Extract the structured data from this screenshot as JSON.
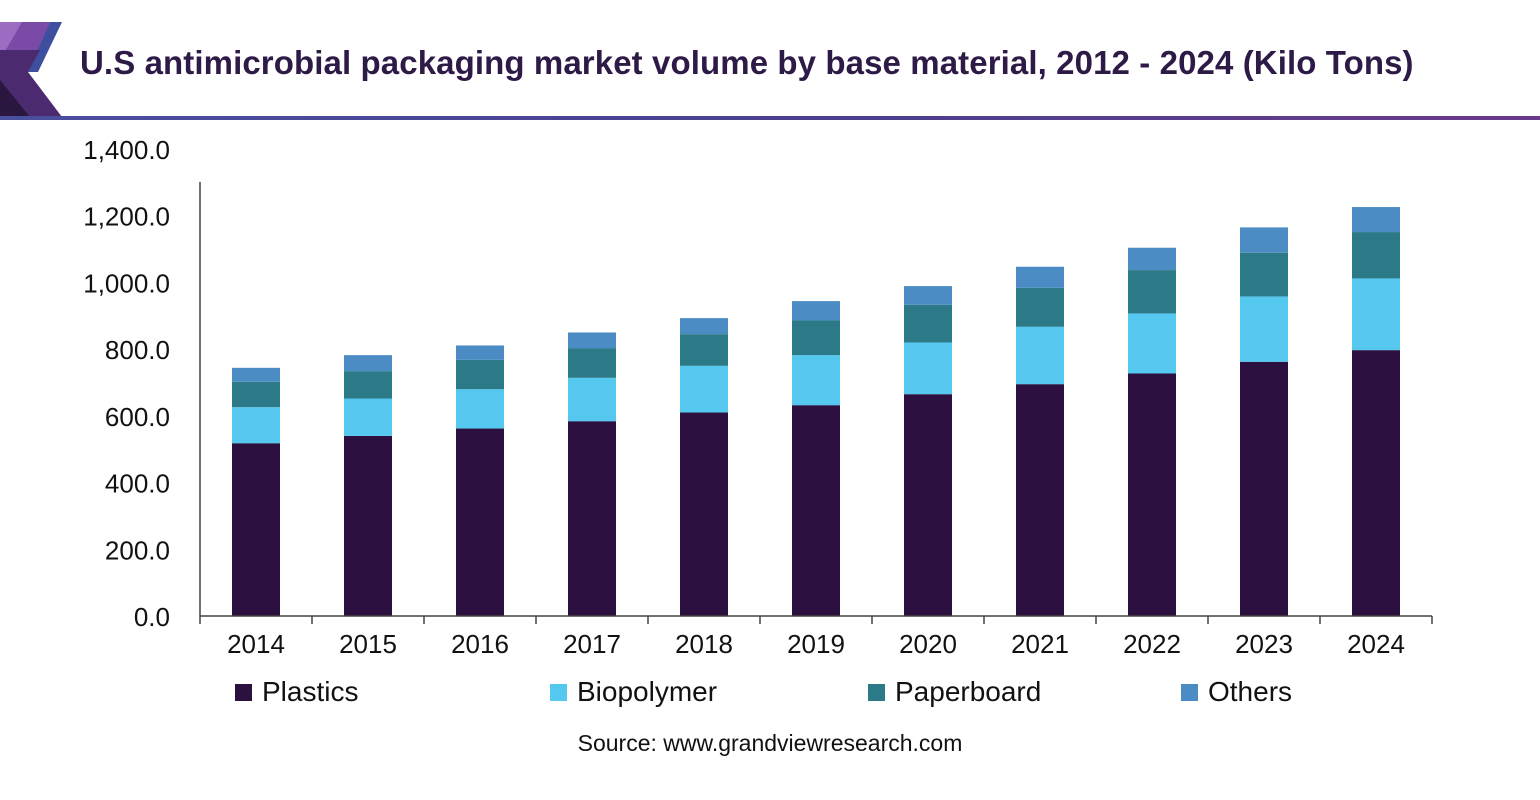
{
  "colors": {
    "plastics": "#2b1040",
    "biopolymer": "#55c8f0",
    "paperboard": "#2c7a87",
    "others": "#4c8cc4",
    "title": "#2e1a47",
    "axis": "#444444"
  },
  "chart_data": {
    "type": "bar",
    "stacked": true,
    "title": "U.S antimicrobial packaging market volume by base material, 2012 - 2024 (Kilo Tons)",
    "xlabel": "",
    "ylabel": "",
    "ylim": [
      0,
      1400
    ],
    "y_ticks": [
      "0.0",
      "200.0",
      "400.0",
      "600.0",
      "800.0",
      "1,000.0",
      "1,200.0",
      "1,400.0"
    ],
    "y_tick_values": [
      0,
      200,
      400,
      600,
      800,
      1000,
      1200,
      1400
    ],
    "grid": false,
    "legend_position": "bottom",
    "categories": [
      "2014",
      "2015",
      "2016",
      "2017",
      "2018",
      "2019",
      "2020",
      "2021",
      "2022",
      "2023",
      "2024"
    ],
    "series": [
      {
        "name": "Plastics",
        "key": "plastics",
        "values": [
          518,
          540,
          562,
          584,
          610,
          632,
          665,
          695,
          727,
          762,
          797
        ]
      },
      {
        "name": "Biopolymer",
        "key": "biopolymer",
        "values": [
          108,
          112,
          118,
          130,
          140,
          150,
          155,
          172,
          180,
          196,
          215
        ]
      },
      {
        "name": "Paperboard",
        "key": "paperboard",
        "values": [
          76,
          82,
          88,
          88,
          95,
          104,
          113,
          117,
          130,
          131,
          139
        ]
      },
      {
        "name": "Others",
        "key": "others",
        "values": [
          42,
          48,
          43,
          48,
          48,
          58,
          56,
          63,
          67,
          76,
          75
        ]
      }
    ],
    "source": "Source: www.grandviewresearch.com"
  }
}
